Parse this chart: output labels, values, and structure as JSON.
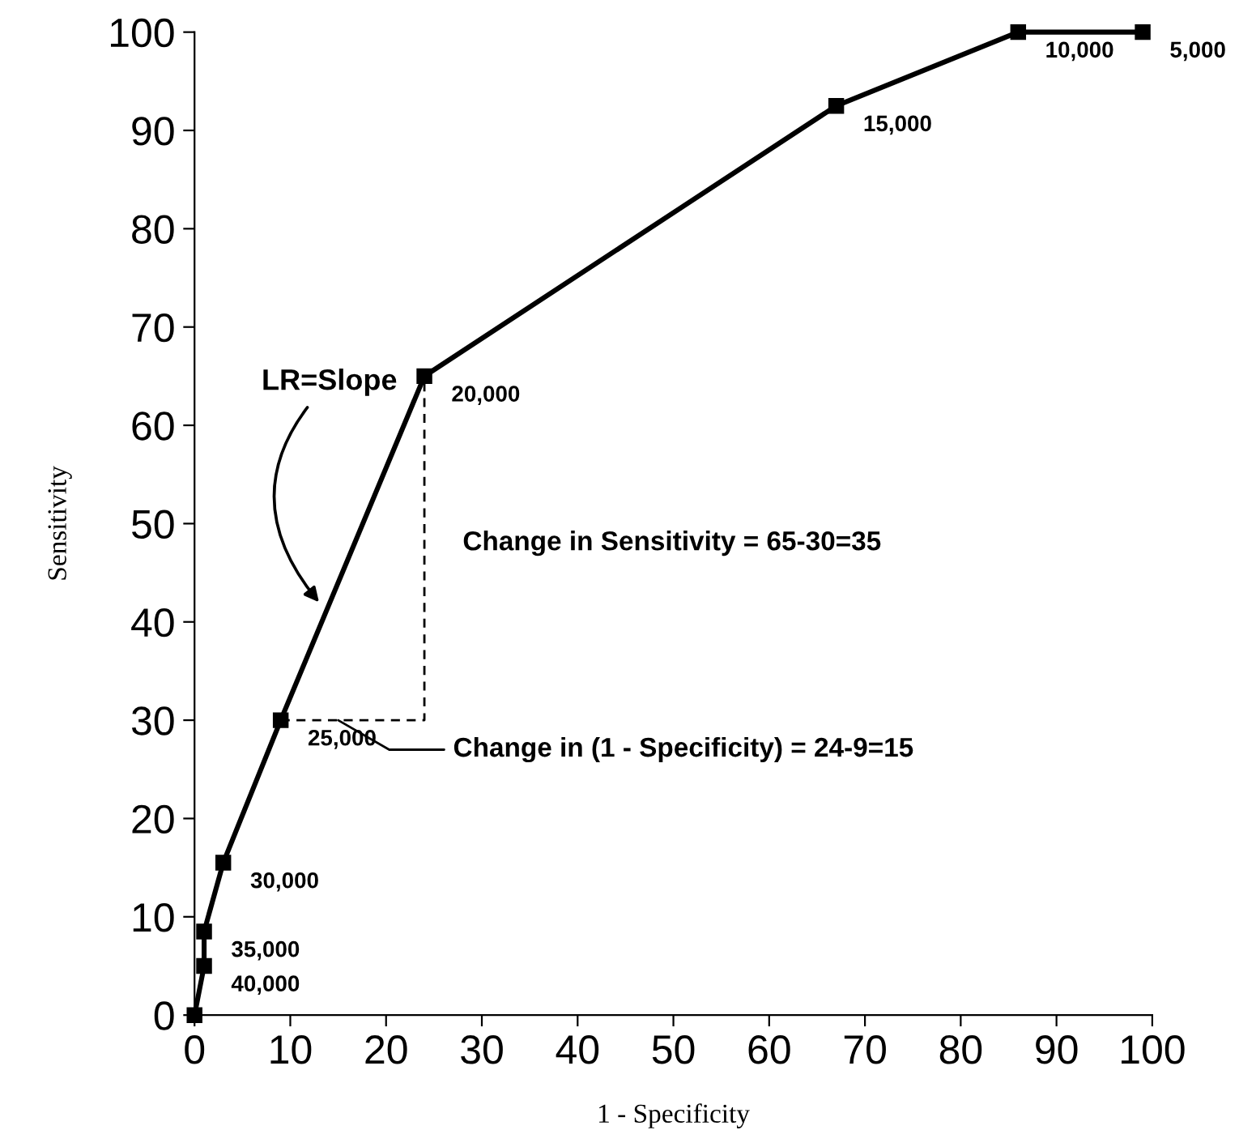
{
  "chart_data": {
    "type": "line",
    "xlabel": "1 - Specificity",
    "ylabel": "Sensitivity",
    "xlim": [
      0,
      100
    ],
    "ylim": [
      0,
      100
    ],
    "xticks": [
      0,
      10,
      20,
      30,
      40,
      50,
      60,
      70,
      80,
      90,
      100
    ],
    "yticks": [
      0,
      10,
      20,
      30,
      40,
      50,
      60,
      70,
      80,
      90,
      100
    ],
    "grid": false,
    "marker": "square",
    "line_style": "solid",
    "series": [
      {
        "color": "#000000",
        "x": [
          0,
          1,
          1,
          3,
          9,
          24,
          67,
          86,
          99
        ],
        "values": [
          0,
          5,
          8.5,
          15.5,
          30,
          65,
          92.5,
          100,
          100
        ]
      },
      {
        "type": "line",
        "color": "#000000",
        "x": [
          9,
          24,
          24
        ],
        "values": [
          30,
          30,
          65
        ],
        "line_style": "dashed",
        "marker": "none"
      }
    ],
    "annotations": [
      {
        "text": "LR=Slope",
        "x": 13,
        "y": 42
      },
      {
        "text": "Change in Sensitivity = 65-30=35",
        "x": 24,
        "y": 48
      },
      {
        "text": "Change in (1 - Specificity) = 24-9=15",
        "x": 15,
        "y": 30
      },
      {
        "text": "40,000",
        "x": 1,
        "y": 5
      },
      {
        "text": "35,000",
        "x": 1,
        "y": 8.5
      },
      {
        "text": "30,000",
        "x": 3,
        "y": 15.5
      },
      {
        "text": "25,000",
        "x": 9,
        "y": 30
      },
      {
        "text": "20,000",
        "x": 24,
        "y": 65
      },
      {
        "text": "15,000",
        "x": 67,
        "y": 92.5
      },
      {
        "text": "10,000",
        "x": 86,
        "y": 100
      },
      {
        "text": "5,000",
        "x": 99,
        "y": 100
      }
    ]
  }
}
